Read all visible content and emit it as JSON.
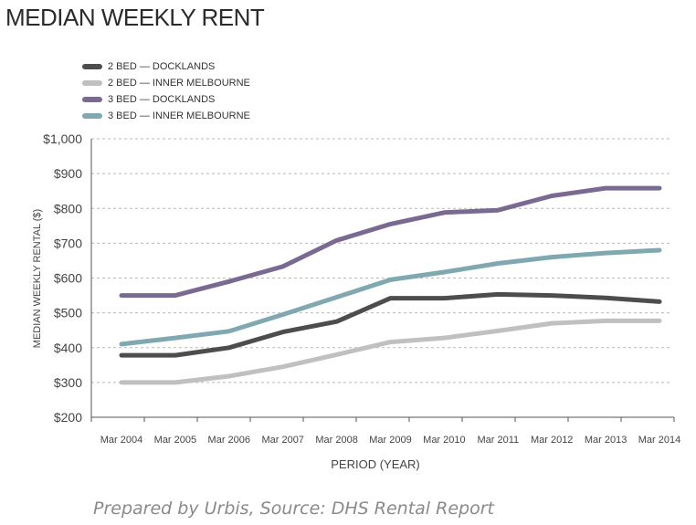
{
  "chart_data": {
    "type": "line",
    "title": "MEDIAN WEEKLY RENT",
    "xlabel": "PERIOD (YEAR)",
    "ylabel": "MEDIAN WEEKLY RENTAL ($)",
    "categories": [
      "Mar 2004",
      "Mar 2005",
      "Mar 2006",
      "Mar 2007",
      "Mar 2008",
      "Mar 2009",
      "Mar 2010",
      "Mar 2011",
      "Mar 2012",
      "Mar 2013",
      "Mar 2014"
    ],
    "yticks": [
      "$200",
      "$300",
      "$400",
      "$500",
      "$600",
      "$700",
      "$800",
      "$900",
      "$1,000"
    ],
    "ylim": [
      200,
      1000
    ],
    "grid": true,
    "legend_position": "top-left",
    "series": [
      {
        "name": "2 BED — DOCKLANDS",
        "color": "#4d4d4d",
        "values": [
          378,
          378,
          400,
          445,
          475,
          542,
          542,
          553,
          550,
          543,
          532
        ]
      },
      {
        "name": "2 BED — INNER MELBOURNE",
        "color": "#c0c0c0",
        "values": [
          300,
          300,
          318,
          345,
          380,
          416,
          428,
          448,
          470,
          477,
          477
        ]
      },
      {
        "name": "3 BED — DOCKLANDS",
        "color": "#7a6a92",
        "values": [
          550,
          550,
          590,
          633,
          708,
          755,
          788,
          795,
          836,
          858,
          858
        ]
      },
      {
        "name": "3 BED — INNER MELBOURNE",
        "color": "#7fa8b0",
        "values": [
          410,
          428,
          447,
          495,
          545,
          595,
          617,
          642,
          660,
          672,
          680
        ]
      }
    ],
    "source": "Prepared by Urbis, Source: DHS Rental Report"
  }
}
